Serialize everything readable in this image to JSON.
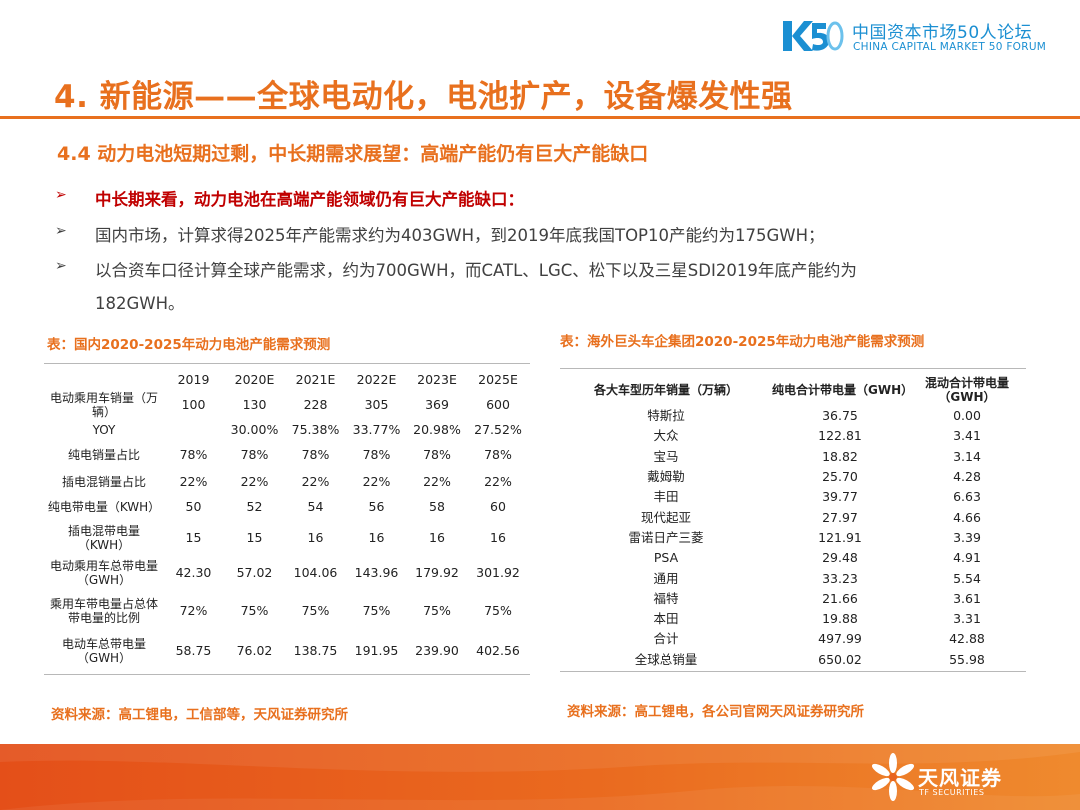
{
  "header": {
    "logo_cn": "中国资本市场50人论坛",
    "logo_en": "CHINA CAPITAL MARKET 50 FORUM",
    "brand_color": "#1b8fd2"
  },
  "title": "4. 新能源——全球电动化，电池扩产，设备爆发性强",
  "subtitle": "4.4 动力电池短期过剩，中长期需求展望：高端产能仍有巨大产能缺口",
  "accent_color": "#e8701e",
  "bullets": {
    "marker": "➢",
    "b1": "中长期来看，动力电池在高端产能领域仍有巨大产能缺口：",
    "b2": "国内市场，计算求得2025年产能需求约为403GWH，到2019年底我国TOP10产能约为175GWH；",
    "b3_line1": "以合资车口径计算全球产能需求，约为700GWH，而CATL、LGC、松下以及三星SDI2019年底产能约为",
    "b3_line2": "182GWH。"
  },
  "left_table": {
    "caption": "表：国内2020-2025年动力电池产能需求预测",
    "header": [
      "",
      "2019",
      "2020E",
      "2021E",
      "2022E",
      "2023E",
      "2025E"
    ],
    "rows": [
      {
        "label": "电动乘用车销量（万辆）",
        "values": [
          "100",
          "130",
          "228",
          "305",
          "369",
          "600"
        ]
      },
      {
        "label": "YOY",
        "values": [
          "",
          "30.00%",
          "75.38%",
          "33.77%",
          "20.98%",
          "27.52%"
        ]
      },
      {
        "label": "纯电销量占比",
        "values": [
          "78%",
          "78%",
          "78%",
          "78%",
          "78%",
          "78%"
        ]
      },
      {
        "label": "插电混销量占比",
        "values": [
          "22%",
          "22%",
          "22%",
          "22%",
          "22%",
          "22%"
        ]
      },
      {
        "label": "纯电带电量（KWH）",
        "values": [
          "50",
          "52",
          "54",
          "56",
          "58",
          "60"
        ]
      },
      {
        "label": "插电混带电量（KWH）",
        "values": [
          "15",
          "15",
          "16",
          "16",
          "16",
          "16"
        ]
      },
      {
        "label": "电动乘用车总带电量（GWH）",
        "values": [
          "42.30",
          "57.02",
          "104.06",
          "143.96",
          "179.92",
          "301.92"
        ]
      },
      {
        "label": "乘用车带电量占总体带电量的比例",
        "values": [
          "72%",
          "75%",
          "75%",
          "75%",
          "75%",
          "75%"
        ]
      },
      {
        "label": "电动车总带电量（GWH）",
        "values": [
          "58.75",
          "76.02",
          "138.75",
          "191.95",
          "239.90",
          "402.56"
        ]
      }
    ],
    "source": "资料来源：高工锂电，工信部等，天风证券研究所"
  },
  "right_table": {
    "caption": "表：海外巨头车企集团2020-2025年动力电池产能需求预测",
    "header": [
      "各大车型历年销量（万辆）",
      "纯电合计带电量（GWH）",
      "混动合计带电量（GWH）"
    ],
    "rows": [
      {
        "name": "特斯拉",
        "ev": "36.75",
        "hybrid": "0.00"
      },
      {
        "name": "大众",
        "ev": "122.81",
        "hybrid": "3.41"
      },
      {
        "name": "宝马",
        "ev": "18.82",
        "hybrid": "3.14"
      },
      {
        "name": "戴姆勒",
        "ev": "25.70",
        "hybrid": "4.28"
      },
      {
        "name": "丰田",
        "ev": "39.77",
        "hybrid": "6.63"
      },
      {
        "name": "现代起亚",
        "ev": "27.97",
        "hybrid": "4.66"
      },
      {
        "name": "雷诺日产三菱",
        "ev": "121.91",
        "hybrid": "3.39"
      },
      {
        "name": "PSA",
        "ev": "29.48",
        "hybrid": "4.91"
      },
      {
        "name": "通用",
        "ev": "33.23",
        "hybrid": "5.54"
      },
      {
        "name": "福特",
        "ev": "21.66",
        "hybrid": "3.61"
      },
      {
        "name": "本田",
        "ev": "19.88",
        "hybrid": "3.31"
      },
      {
        "name": "合计",
        "ev": "497.99",
        "hybrid": "42.88"
      },
      {
        "name": "全球总销量",
        "ev": "650.02",
        "hybrid": "55.98"
      }
    ],
    "source": "资料来源：高工锂电，各公司官网天风证券研究所"
  },
  "footer": {
    "logo_cn": "天风证券",
    "logo_en": "TF SECURITIES",
    "bar_color": "#e8631e"
  }
}
